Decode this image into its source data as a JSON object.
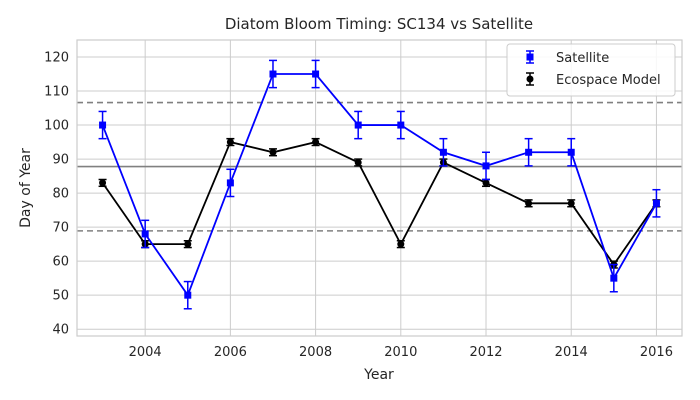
{
  "chart_data": {
    "type": "line",
    "title": "Diatom Bloom Timing: SC134 vs Satellite",
    "xlabel": "Year",
    "ylabel": "Day of Year",
    "xlim": [
      2002.4,
      2016.6
    ],
    "ylim": [
      38,
      125
    ],
    "xticks": [
      2004,
      2006,
      2008,
      2010,
      2012,
      2014,
      2016
    ],
    "yticks": [
      40,
      50,
      60,
      70,
      80,
      90,
      100,
      110,
      120
    ],
    "grid": true,
    "legend_position": "top-right",
    "hlines": [
      {
        "y": 87.8,
        "style": "solid",
        "color": "#808080"
      },
      {
        "y": 106.6,
        "style": "dashed",
        "color": "#808080"
      },
      {
        "y": 68.9,
        "style": "dashed",
        "color": "#808080"
      }
    ],
    "series": [
      {
        "name": "Satellite",
        "color": "#0000ff",
        "marker": "square",
        "x": [
          2003,
          2004,
          2005,
          2006,
          2007,
          2008,
          2009,
          2010,
          2011,
          2012,
          2013,
          2014,
          2015,
          2016
        ],
        "y": [
          100,
          68,
          50,
          83,
          115,
          115,
          100,
          100,
          92,
          88,
          92,
          92,
          55,
          77
        ],
        "yerr": [
          4,
          4,
          4,
          4,
          4,
          4,
          4,
          4,
          4,
          4,
          4,
          4,
          4,
          4
        ]
      },
      {
        "name": "Ecospace Model",
        "color": "#000000",
        "marker": "circle",
        "x": [
          2003,
          2004,
          2005,
          2006,
          2007,
          2008,
          2009,
          2010,
          2011,
          2012,
          2013,
          2014,
          2015,
          2016
        ],
        "y": [
          83,
          65,
          65,
          95,
          92,
          95,
          89,
          65,
          89,
          83,
          77,
          77,
          59,
          77
        ],
        "yerr": [
          1,
          1,
          1,
          1,
          1,
          1,
          1,
          1,
          1,
          1,
          1,
          1,
          1,
          1
        ]
      }
    ]
  }
}
